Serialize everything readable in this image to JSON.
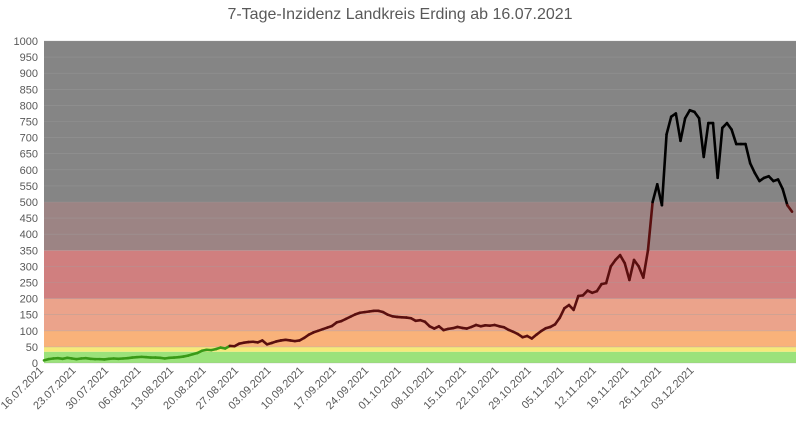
{
  "chart_data": {
    "type": "line",
    "title": "7-Tage-Inzidenz Landkreis Erding ab 16.07.2021",
    "ylim": [
      0,
      1000
    ],
    "yticks": [
      0,
      50,
      100,
      150,
      200,
      250,
      300,
      350,
      400,
      450,
      500,
      550,
      600,
      650,
      700,
      750,
      800,
      850,
      900,
      950,
      1000
    ],
    "xtick_labels": [
      "16.07.2021",
      "23.07.2021",
      "30.07.2021",
      "06.08.2021",
      "13.08.2021",
      "20.08.2021",
      "27.08.2021",
      "03.09.2021",
      "10.09.2021",
      "17.09.2021",
      "24.09.2021",
      "01.10.2021",
      "08.10.2021",
      "15.10.2021",
      "22.10.2021",
      "29.10.2021",
      "05.11.2021",
      "12.11.2021",
      "19.11.2021",
      "26.11.2021",
      "03.12.2021"
    ],
    "grid": true,
    "bands": [
      {
        "from": 0,
        "to": 35,
        "color": "#9be27b"
      },
      {
        "from": 35,
        "to": 50,
        "color": "#f6ea7a"
      },
      {
        "from": 50,
        "to": 100,
        "color": "#f9b27a"
      },
      {
        "from": 100,
        "to": 200,
        "color": "#eba38b"
      },
      {
        "from": 200,
        "to": 350,
        "color": "#d07f7f"
      },
      {
        "from": 350,
        "to": 500,
        "color": "#9c8484"
      },
      {
        "from": 500,
        "to": 1000,
        "color": "#858585"
      }
    ],
    "line_colors": {
      "low": "#3a9a17",
      "mid": "#5a0f0f",
      "high": "#000000"
    },
    "series": [
      {
        "values": [
          8,
          12,
          14,
          15,
          13,
          16,
          14,
          12,
          14,
          15,
          13,
          12,
          12,
          11,
          13,
          14,
          13,
          14,
          15,
          17,
          18,
          19,
          18,
          17,
          17,
          16,
          14,
          16,
          17,
          18,
          20,
          23,
          27,
          31,
          38,
          41,
          40,
          43,
          48,
          45,
          53,
          52,
          60,
          63,
          65,
          66,
          64,
          70,
          58,
          62,
          67,
          70,
          72,
          70,
          68,
          70,
          78,
          88,
          95,
          100,
          105,
          110,
          115,
          126,
          130,
          137,
          144,
          151,
          156,
          158,
          160,
          162,
          162,
          158,
          150,
          145,
          143,
          142,
          141,
          139,
          131,
          133,
          128,
          114,
          107,
          114,
          102,
          106,
          108,
          112,
          109,
          107,
          112,
          118,
          114,
          117,
          116,
          118,
          114,
          111,
          103,
          97,
          90,
          80,
          84,
          76,
          88,
          99,
          108,
          112,
          120,
          140,
          170,
          180,
          165,
          208,
          210,
          225,
          218,
          223,
          245,
          248,
          300,
          320,
          335,
          310,
          258,
          320,
          300,
          265,
          350,
          500,
          555,
          490,
          710,
          765,
          775,
          690,
          760,
          785,
          780,
          760,
          640,
          745,
          745,
          575,
          730,
          745,
          725,
          680,
          680,
          680,
          620,
          590,
          565,
          575,
          580,
          565,
          570,
          540,
          490,
          470
        ]
      }
    ]
  }
}
